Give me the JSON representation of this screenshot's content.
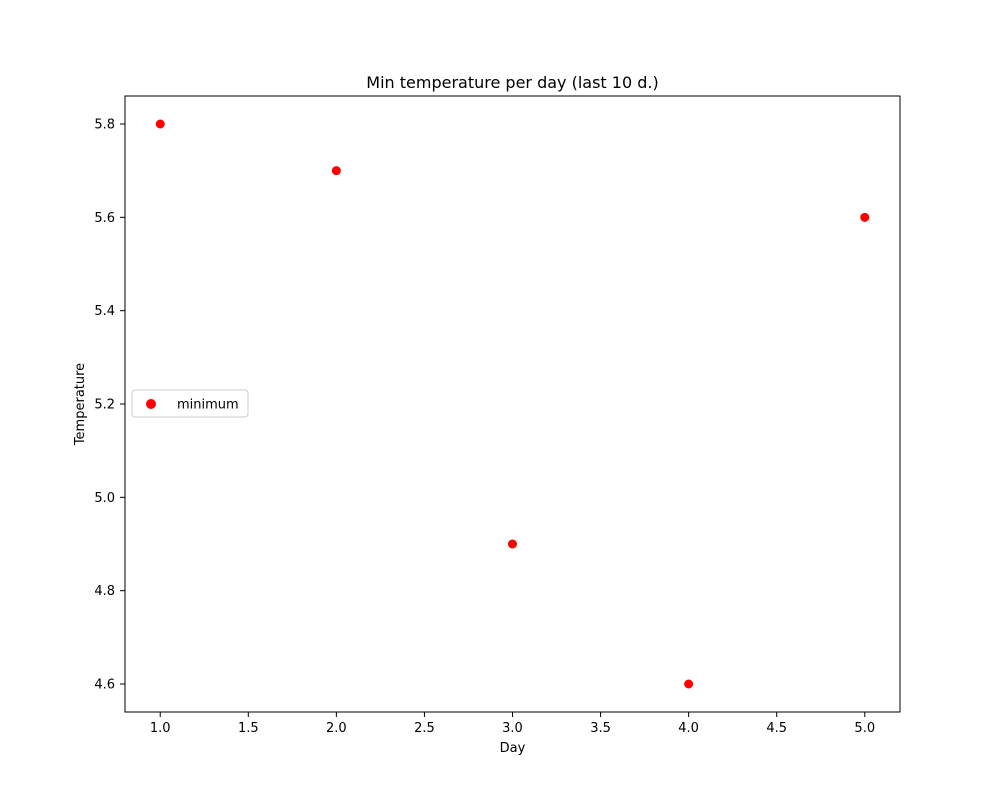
{
  "chart_data": {
    "type": "scatter",
    "title": "Min temperature per day (last 10 d.)",
    "xlabel": "Day",
    "ylabel": "Temperature",
    "xlim": [
      0.8,
      5.2
    ],
    "ylim": [
      4.54,
      5.86
    ],
    "xticks": [
      1.0,
      1.5,
      2.0,
      2.5,
      3.0,
      3.5,
      4.0,
      4.5,
      5.0
    ],
    "xtick_labels": [
      "1.0",
      "1.5",
      "2.0",
      "2.5",
      "3.0",
      "3.5",
      "4.0",
      "4.5",
      "5.0"
    ],
    "yticks": [
      4.6,
      4.8,
      5.0,
      5.2,
      5.4,
      5.6,
      5.8
    ],
    "ytick_labels": [
      "4.6",
      "4.8",
      "5.0",
      "5.2",
      "5.4",
      "5.6",
      "5.8"
    ],
    "grid": false,
    "legend": {
      "position": "center-left",
      "entries": [
        "minimum"
      ]
    },
    "series": [
      {
        "name": "minimum",
        "color": "#ff0000",
        "x": [
          1,
          2,
          3,
          4,
          5
        ],
        "y": [
          5.8,
          5.7,
          4.9,
          4.6,
          5.6
        ]
      }
    ]
  }
}
